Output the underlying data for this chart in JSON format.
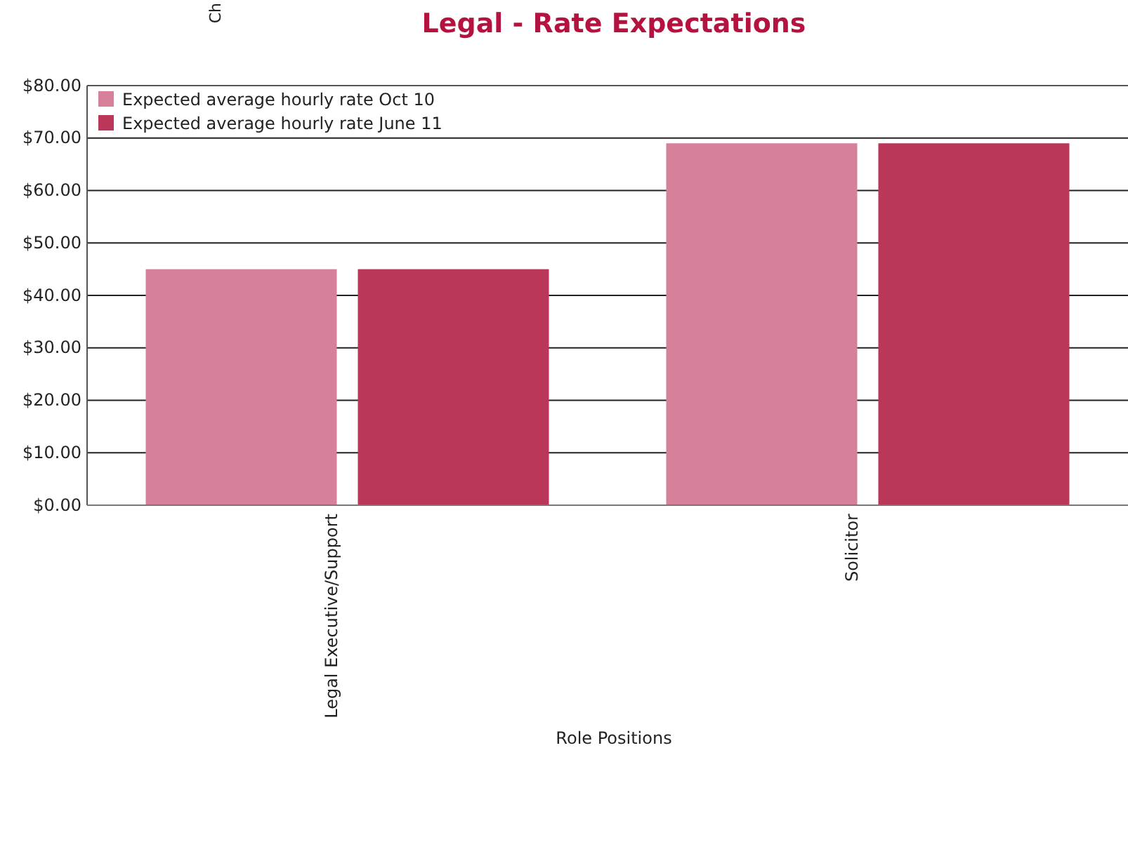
{
  "chart_data": {
    "type": "bar",
    "title": "Legal - Rate Expectations",
    "xlabel": "Role Positions",
    "categories": [
      "Legal Executive/Support",
      "Solicitor"
    ],
    "series": [
      {
        "name": "Expected average hourly rate Oct 10",
        "color": "#d6809a",
        "values": [
          45,
          69
        ]
      },
      {
        "name": "Expected average hourly rate June 11",
        "color": "#ba375a",
        "values": [
          45,
          69
        ]
      }
    ],
    "ylim": [
      0,
      80
    ],
    "yticks": [
      {
        "value": 0,
        "label": "$0.00"
      },
      {
        "value": 10,
        "label": "$10.00"
      },
      {
        "value": 20,
        "label": "$20.00"
      },
      {
        "value": 30,
        "label": "$30.00"
      },
      {
        "value": 40,
        "label": "$40.00"
      },
      {
        "value": 50,
        "label": "$50.00"
      },
      {
        "value": 60,
        "label": "$60.00"
      },
      {
        "value": 70,
        "label": "$70.00"
      },
      {
        "value": 80,
        "label": "$80.00"
      }
    ],
    "grid": "y",
    "legend": "top left",
    "annotations": [
      "Ch"
    ]
  }
}
